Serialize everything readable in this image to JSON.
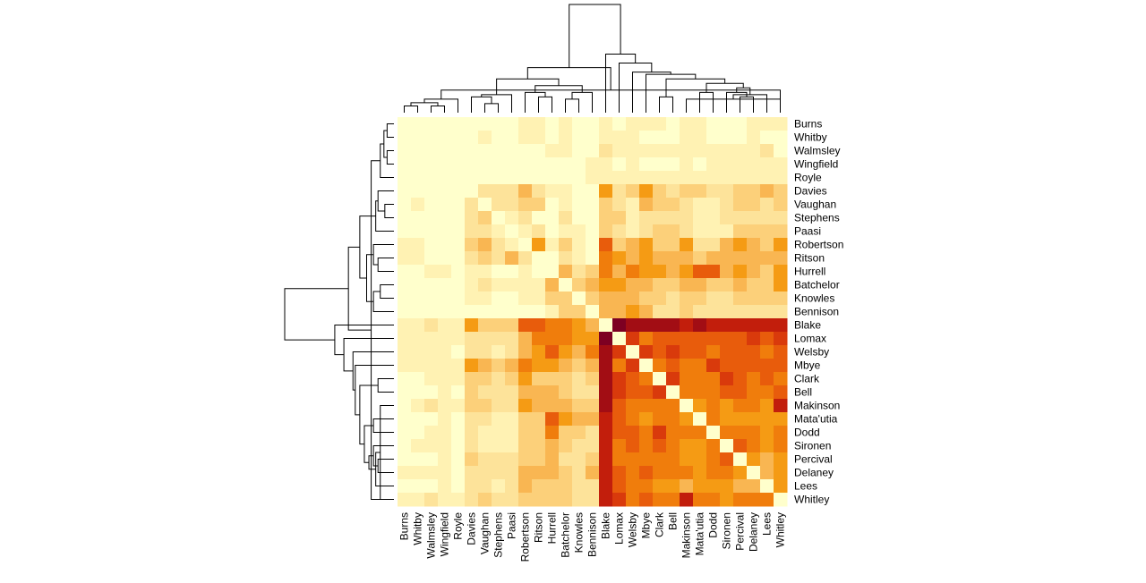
{
  "chart_data": {
    "type": "heatmap",
    "title": "",
    "row_labels": [
      "Burns",
      "Whitby",
      "Walmsley",
      "Wingfield",
      "Royle",
      "Davies",
      "Vaughan",
      "Stephens",
      "Paasi",
      "Robertson",
      "Ritson",
      "Hurrell",
      "Batchelor",
      "Knowles",
      "Bennison",
      "Blake",
      "Lomax",
      "Welsby",
      "Mbye",
      "Clark",
      "Bell",
      "Makinson",
      "Mata'utia",
      "Dodd",
      "Sironen",
      "Percival",
      "Delaney",
      "Lees",
      "Whitley"
    ],
    "col_labels": [
      "Burns",
      "Whitby",
      "Walmsley",
      "Wingfield",
      "Royle",
      "Davies",
      "Vaughan",
      "Stephens",
      "Paasi",
      "Robertson",
      "Ritson",
      "Hurrell",
      "Batchelor",
      "Knowles",
      "Bennison",
      "Blake",
      "Lomax",
      "Welsby",
      "Mbye",
      "Clark",
      "Bell",
      "Makinson",
      "Mata'utia",
      "Dodd",
      "Sironen",
      "Percival",
      "Delaney",
      "Lees",
      "Whitley"
    ],
    "color_scale": [
      "#ffffcc",
      "#fff2b3",
      "#fde39a",
      "#fcd07a",
      "#f9b652",
      "#f59b14",
      "#f07d0c",
      "#e85c0c",
      "#d93a0c",
      "#c21e0c",
      "#a20d14",
      "#7d0022"
    ],
    "values": [
      [
        0,
        0,
        0,
        0,
        0,
        0,
        0,
        0,
        0,
        1,
        1,
        0,
        1,
        0,
        0,
        1,
        0,
        1,
        1,
        1,
        0,
        1,
        1,
        0,
        0,
        0,
        1,
        1,
        1
      ],
      [
        0,
        0,
        0,
        0,
        0,
        0,
        1,
        0,
        0,
        1,
        1,
        0,
        1,
        0,
        0,
        1,
        1,
        1,
        0,
        0,
        0,
        1,
        1,
        0,
        0,
        0,
        1,
        0,
        0
      ],
      [
        0,
        0,
        0,
        0,
        0,
        0,
        0,
        0,
        0,
        0,
        0,
        1,
        1,
        0,
        0,
        2,
        1,
        1,
        1,
        1,
        1,
        1,
        1,
        1,
        1,
        1,
        1,
        2,
        0
      ],
      [
        0,
        0,
        0,
        0,
        0,
        0,
        0,
        0,
        0,
        0,
        0,
        0,
        0,
        0,
        1,
        1,
        0,
        1,
        0,
        0,
        0,
        1,
        0,
        1,
        1,
        1,
        1,
        1,
        1
      ],
      [
        0,
        0,
        0,
        0,
        0,
        0,
        0,
        0,
        0,
        0,
        0,
        0,
        0,
        0,
        1,
        1,
        1,
        1,
        1,
        1,
        1,
        1,
        1,
        1,
        1,
        1,
        1,
        1,
        1
      ],
      [
        0,
        0,
        0,
        0,
        0,
        0,
        2,
        2,
        2,
        4,
        2,
        1,
        1,
        0,
        0,
        5,
        2,
        3,
        5,
        3,
        2,
        3,
        3,
        2,
        2,
        3,
        3,
        4,
        3
      ],
      [
        0,
        1,
        0,
        0,
        0,
        2,
        0,
        2,
        2,
        3,
        3,
        0,
        1,
        0,
        0,
        3,
        2,
        1,
        4,
        3,
        3,
        2,
        1,
        1,
        2,
        3,
        3,
        2,
        3
      ],
      [
        0,
        0,
        0,
        0,
        0,
        2,
        3,
        0,
        1,
        2,
        0,
        0,
        2,
        0,
        0,
        3,
        3,
        1,
        2,
        2,
        2,
        2,
        1,
        1,
        2,
        2,
        2,
        2,
        2
      ],
      [
        0,
        0,
        0,
        0,
        0,
        2,
        2,
        1,
        0,
        1,
        2,
        0,
        1,
        1,
        0,
        3,
        2,
        1,
        2,
        3,
        3,
        2,
        1,
        1,
        1,
        3,
        3,
        3,
        3
      ],
      [
        1,
        1,
        0,
        0,
        0,
        3,
        4,
        2,
        1,
        0,
        5,
        1,
        3,
        1,
        0,
        7,
        3,
        4,
        5,
        3,
        3,
        5,
        2,
        2,
        4,
        5,
        4,
        3,
        5
      ],
      [
        1,
        1,
        0,
        0,
        0,
        2,
        3,
        2,
        4,
        2,
        0,
        0,
        2,
        1,
        0,
        6,
        5,
        4,
        5,
        4,
        4,
        4,
        3,
        4,
        4,
        4,
        4,
        4,
        4
      ],
      [
        0,
        0,
        1,
        1,
        0,
        1,
        1,
        0,
        0,
        1,
        0,
        0,
        4,
        2,
        3,
        6,
        4,
        6,
        5,
        5,
        4,
        5,
        7,
        7,
        4,
        5,
        4,
        3,
        5
      ],
      [
        0,
        0,
        0,
        0,
        0,
        1,
        2,
        1,
        1,
        1,
        1,
        4,
        0,
        3,
        4,
        5,
        5,
        4,
        4,
        3,
        3,
        4,
        4,
        3,
        3,
        4,
        3,
        3,
        5
      ],
      [
        0,
        0,
        0,
        0,
        0,
        1,
        1,
        0,
        0,
        1,
        1,
        3,
        3,
        0,
        3,
        4,
        4,
        4,
        3,
        3,
        2,
        3,
        3,
        2,
        2,
        3,
        3,
        3,
        3
      ],
      [
        0,
        0,
        0,
        0,
        0,
        0,
        0,
        0,
        0,
        0,
        0,
        1,
        3,
        3,
        0,
        4,
        4,
        5,
        4,
        2,
        2,
        3,
        2,
        2,
        2,
        2,
        2,
        2,
        2
      ],
      [
        1,
        1,
        2,
        1,
        1,
        5,
        3,
        3,
        3,
        7,
        7,
        6,
        6,
        5,
        4,
        0,
        11,
        10,
        10,
        10,
        10,
        9,
        10,
        9,
        9,
        9,
        9,
        9,
        9
      ],
      [
        1,
        1,
        1,
        1,
        1,
        2,
        2,
        2,
        2,
        4,
        6,
        6,
        6,
        5,
        5,
        11,
        0,
        8,
        6,
        7,
        7,
        7,
        7,
        7,
        7,
        7,
        8,
        7,
        8
      ],
      [
        1,
        1,
        1,
        1,
        0,
        2,
        2,
        1,
        2,
        4,
        5,
        7,
        5,
        4,
        6,
        10,
        8,
        0,
        8,
        7,
        8,
        7,
        7,
        6,
        7,
        7,
        7,
        6,
        7
      ],
      [
        1,
        1,
        1,
        1,
        1,
        5,
        4,
        3,
        4,
        6,
        5,
        5,
        4,
        3,
        4,
        10,
        6,
        8,
        0,
        6,
        7,
        6,
        6,
        8,
        7,
        7,
        7,
        7,
        7
      ],
      [
        0,
        0,
        1,
        1,
        1,
        3,
        3,
        2,
        3,
        5,
        3,
        3,
        3,
        2,
        3,
        10,
        8,
        7,
        6,
        0,
        8,
        6,
        6,
        6,
        8,
        7,
        6,
        7,
        6
      ],
      [
        0,
        0,
        0,
        1,
        0,
        3,
        2,
        2,
        2,
        4,
        4,
        4,
        3,
        2,
        2,
        10,
        8,
        7,
        7,
        8,
        0,
        6,
        6,
        6,
        7,
        7,
        6,
        6,
        7
      ],
      [
        0,
        1,
        2,
        1,
        1,
        3,
        3,
        2,
        2,
        5,
        4,
        4,
        4,
        3,
        3,
        10,
        7,
        6,
        6,
        6,
        6,
        0,
        5,
        6,
        5,
        6,
        6,
        5,
        9
      ],
      [
        0,
        0,
        0,
        1,
        0,
        2,
        2,
        1,
        1,
        3,
        3,
        7,
        5,
        4,
        4,
        9,
        7,
        6,
        5,
        6,
        6,
        5,
        0,
        6,
        5,
        5,
        5,
        5,
        5
      ],
      [
        0,
        0,
        1,
        1,
        0,
        2,
        1,
        1,
        1,
        3,
        3,
        6,
        3,
        3,
        2,
        9,
        7,
        7,
        6,
        8,
        6,
        6,
        6,
        0,
        6,
        6,
        6,
        5,
        6
      ],
      [
        0,
        1,
        1,
        1,
        0,
        2,
        1,
        1,
        1,
        3,
        3,
        4,
        3,
        2,
        2,
        9,
        6,
        7,
        6,
        7,
        6,
        5,
        5,
        6,
        0,
        7,
        6,
        5,
        6
      ],
      [
        0,
        0,
        0,
        1,
        0,
        3,
        2,
        2,
        2,
        3,
        3,
        4,
        2,
        2,
        3,
        9,
        6,
        6,
        6,
        6,
        6,
        5,
        5,
        6,
        7,
        0,
        5,
        4,
        5
      ],
      [
        1,
        1,
        1,
        1,
        0,
        2,
        2,
        2,
        2,
        4,
        4,
        4,
        3,
        2,
        4,
        9,
        7,
        6,
        7,
        6,
        6,
        6,
        5,
        6,
        6,
        5,
        0,
        4,
        5
      ],
      [
        0,
        0,
        0,
        1,
        0,
        2,
        2,
        1,
        2,
        4,
        3,
        3,
        3,
        2,
        2,
        9,
        7,
        6,
        6,
        5,
        5,
        4,
        5,
        5,
        5,
        4,
        4,
        0,
        5
      ],
      [
        1,
        1,
        2,
        1,
        1,
        2,
        3,
        2,
        2,
        3,
        3,
        3,
        3,
        2,
        2,
        9,
        8,
        6,
        7,
        6,
        6,
        9,
        6,
        6,
        5,
        6,
        6,
        6,
        0
      ]
    ],
    "row_dendrogram": [
      [
        0,
        1,
        0.15
      ],
      [
        2,
        3,
        0.15
      ],
      [
        29,
        30,
        0.22
      ],
      [
        4,
        31,
        0.3
      ],
      [
        28,
        32,
        0.5
      ],
      [
        6,
        7,
        0.2
      ],
      [
        5,
        34,
        0.35
      ],
      [
        8,
        35,
        0.4
      ],
      [
        10,
        11,
        0.35
      ],
      [
        9,
        37,
        0.45
      ],
      [
        12,
        13,
        0.3
      ],
      [
        39,
        14,
        0.45
      ],
      [
        38,
        40,
        0.6
      ],
      [
        36,
        41,
        0.75
      ],
      [
        33,
        42,
        1.0
      ],
      [
        21,
        28,
        0.3
      ],
      [
        27,
        44,
        0.4
      ],
      [
        25,
        26,
        0.35
      ],
      [
        24,
        46,
        0.45
      ],
      [
        45,
        47,
        0.55
      ],
      [
        22,
        23,
        0.45
      ],
      [
        48,
        49,
        0.65
      ],
      [
        19,
        20,
        0.35
      ],
      [
        50,
        51,
        0.75
      ],
      [
        18,
        52,
        0.85
      ],
      [
        17,
        53,
        0.9
      ],
      [
        16,
        54,
        1.1
      ],
      [
        15,
        55,
        1.3
      ],
      [
        43,
        56,
        2.4
      ]
    ],
    "col_dendrogram": [
      [
        0,
        1,
        0.15
      ],
      [
        2,
        3,
        0.15
      ],
      [
        29,
        30,
        0.22
      ],
      [
        4,
        31,
        0.3
      ],
      [
        28,
        32,
        0.5
      ],
      [
        6,
        7,
        0.2
      ],
      [
        5,
        34,
        0.35
      ],
      [
        8,
        35,
        0.4
      ],
      [
        10,
        11,
        0.35
      ],
      [
        9,
        37,
        0.45
      ],
      [
        12,
        13,
        0.3
      ],
      [
        39,
        14,
        0.45
      ],
      [
        38,
        40,
        0.6
      ],
      [
        36,
        41,
        0.75
      ],
      [
        33,
        42,
        1.0
      ],
      [
        21,
        28,
        0.3
      ],
      [
        27,
        44,
        0.4
      ],
      [
        25,
        26,
        0.35
      ],
      [
        24,
        46,
        0.45
      ],
      [
        45,
        47,
        0.55
      ],
      [
        22,
        23,
        0.45
      ],
      [
        48,
        49,
        0.65
      ],
      [
        19,
        20,
        0.35
      ],
      [
        50,
        51,
        0.75
      ],
      [
        18,
        52,
        0.85
      ],
      [
        17,
        53,
        0.9
      ],
      [
        16,
        54,
        1.1
      ],
      [
        15,
        55,
        1.3
      ],
      [
        43,
        56,
        2.4
      ]
    ],
    "grid": false,
    "legend": "none"
  }
}
